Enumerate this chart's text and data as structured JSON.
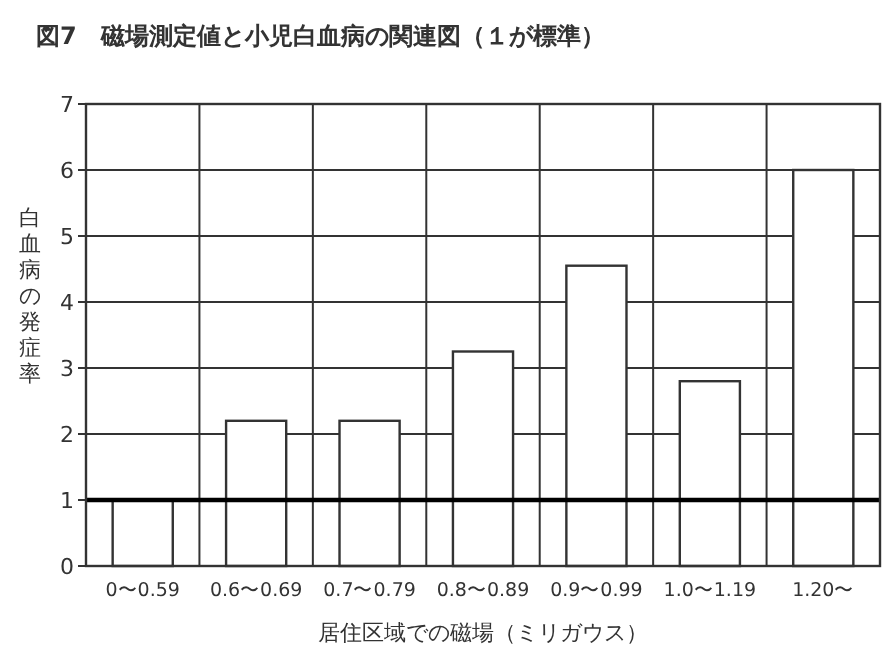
{
  "chart_data": {
    "type": "bar",
    "title": "図7　磁場測定値と小児白血病の関連図（１が標準）",
    "xlabel": "居住区域での磁場（ミリガウス）",
    "ylabel": "白血病の発症率",
    "categories": [
      "0〜0.59",
      "0.6〜0.69",
      "0.7〜0.79",
      "0.8〜0.89",
      "0.9〜0.99",
      "1.0〜1.19",
      "1.20〜"
    ],
    "values": [
      1.0,
      2.2,
      2.2,
      3.25,
      4.55,
      2.8,
      6.0
    ],
    "color": "#ffffff",
    "ylim": [
      0,
      7
    ],
    "yticks": [
      0,
      1,
      2,
      3,
      4,
      5,
      6,
      7
    ],
    "grid": true,
    "ref_lines": [
      {
        "axis": "y",
        "value": 1,
        "color": "#000000"
      }
    ]
  }
}
